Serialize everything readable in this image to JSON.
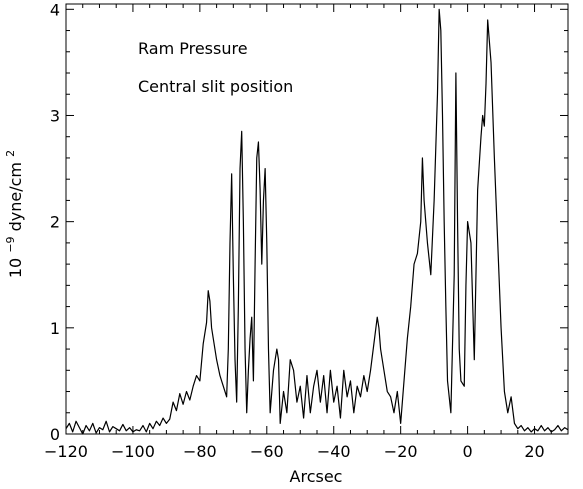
{
  "chart_data": {
    "type": "line",
    "title": "",
    "xlabel": "Arcsec",
    "ylabel": {
      "prefix": "10",
      "exponent": "−9",
      "unit": " dyne/cm",
      "unit_exponent": "2"
    },
    "xlim": [
      -120,
      30
    ],
    "ylim": [
      0,
      4.05
    ],
    "grid": false,
    "legend": "none",
    "annotations": [
      "Ram Pressure",
      "Central slit position"
    ],
    "x_ticks": [
      {
        "value": -120,
        "label": "−120"
      },
      {
        "value": -100,
        "label": "−100"
      },
      {
        "value": -80,
        "label": "−80"
      },
      {
        "value": -60,
        "label": "−60"
      },
      {
        "value": -40,
        "label": "−40"
      },
      {
        "value": -20,
        "label": "−20"
      },
      {
        "value": 0,
        "label": "0"
      },
      {
        "value": 20,
        "label": "20"
      }
    ],
    "y_ticks": [
      {
        "value": 0,
        "label": "0"
      },
      {
        "value": 1,
        "label": "1"
      },
      {
        "value": 2,
        "label": "2"
      },
      {
        "value": 3,
        "label": "3"
      },
      {
        "value": 4,
        "label": "4"
      }
    ],
    "series": [
      {
        "color": "#000000",
        "points": [
          [
            -120,
            0.05
          ],
          [
            -119,
            0.1
          ],
          [
            -118,
            0.02
          ],
          [
            -117,
            0.12
          ],
          [
            -116,
            0.06
          ],
          [
            -115,
            0.0
          ],
          [
            -114,
            0.08
          ],
          [
            -113,
            0.03
          ],
          [
            -112,
            0.1
          ],
          [
            -111,
            0.01
          ],
          [
            -110,
            0.06
          ],
          [
            -109,
            0.04
          ],
          [
            -108,
            0.12
          ],
          [
            -107,
            0.02
          ],
          [
            -106,
            0.07
          ],
          [
            -105,
            0.05
          ],
          [
            -104,
            0.03
          ],
          [
            -103,
            0.09
          ],
          [
            -102,
            0.03
          ],
          [
            -101,
            0.06
          ],
          [
            -100,
            0.02
          ],
          [
            -99,
            0.04
          ],
          [
            -98,
            0.03
          ],
          [
            -97,
            0.08
          ],
          [
            -96,
            0.02
          ],
          [
            -95,
            0.1
          ],
          [
            -94,
            0.05
          ],
          [
            -93,
            0.12
          ],
          [
            -92,
            0.08
          ],
          [
            -91,
            0.15
          ],
          [
            -90,
            0.1
          ],
          [
            -89,
            0.14
          ],
          [
            -88,
            0.3
          ],
          [
            -87,
            0.22
          ],
          [
            -86,
            0.38
          ],
          [
            -85,
            0.28
          ],
          [
            -84,
            0.4
          ],
          [
            -83,
            0.32
          ],
          [
            -82,
            0.45
          ],
          [
            -81,
            0.55
          ],
          [
            -80,
            0.5
          ],
          [
            -79,
            0.85
          ],
          [
            -78,
            1.05
          ],
          [
            -77.5,
            1.35
          ],
          [
            -77,
            1.25
          ],
          [
            -76.5,
            1.0
          ],
          [
            -76,
            0.9
          ],
          [
            -75,
            0.7
          ],
          [
            -74,
            0.55
          ],
          [
            -73,
            0.45
          ],
          [
            -72,
            0.35
          ],
          [
            -71.5,
            0.8
          ],
          [
            -71,
            1.8
          ],
          [
            -70.5,
            2.45
          ],
          [
            -70,
            1.5
          ],
          [
            -69.5,
            0.7
          ],
          [
            -69,
            0.3
          ],
          [
            -68.5,
            1.2
          ],
          [
            -68,
            2.5
          ],
          [
            -67.5,
            2.85
          ],
          [
            -67,
            2.0
          ],
          [
            -66.5,
            0.8
          ],
          [
            -66,
            0.2
          ],
          [
            -65.5,
            0.6
          ],
          [
            -65,
            0.9
          ],
          [
            -64.5,
            1.1
          ],
          [
            -64,
            0.5
          ],
          [
            -63.5,
            1.6
          ],
          [
            -63,
            2.6
          ],
          [
            -62.5,
            2.75
          ],
          [
            -62,
            2.3
          ],
          [
            -61.5,
            1.6
          ],
          [
            -61,
            2.2
          ],
          [
            -60.5,
            2.5
          ],
          [
            -60,
            1.8
          ],
          [
            -59.5,
            0.8
          ],
          [
            -59,
            0.2
          ],
          [
            -58,
            0.6
          ],
          [
            -57,
            0.8
          ],
          [
            -56.5,
            0.7
          ],
          [
            -56,
            0.1
          ],
          [
            -55,
            0.4
          ],
          [
            -54,
            0.2
          ],
          [
            -53,
            0.7
          ],
          [
            -52,
            0.6
          ],
          [
            -51,
            0.3
          ],
          [
            -50,
            0.45
          ],
          [
            -49,
            0.15
          ],
          [
            -48,
            0.55
          ],
          [
            -47,
            0.2
          ],
          [
            -46,
            0.45
          ],
          [
            -45,
            0.6
          ],
          [
            -44,
            0.3
          ],
          [
            -43,
            0.55
          ],
          [
            -42,
            0.2
          ],
          [
            -41,
            0.6
          ],
          [
            -40,
            0.3
          ],
          [
            -39,
            0.45
          ],
          [
            -38,
            0.15
          ],
          [
            -37,
            0.6
          ],
          [
            -36,
            0.35
          ],
          [
            -35,
            0.5
          ],
          [
            -34,
            0.2
          ],
          [
            -33,
            0.45
          ],
          [
            -32,
            0.35
          ],
          [
            -31,
            0.55
          ],
          [
            -30,
            0.4
          ],
          [
            -29,
            0.6
          ],
          [
            -28,
            0.85
          ],
          [
            -27,
            1.1
          ],
          [
            -26.5,
            1.0
          ],
          [
            -26,
            0.8
          ],
          [
            -25,
            0.6
          ],
          [
            -24,
            0.4
          ],
          [
            -23,
            0.35
          ],
          [
            -22,
            0.2
          ],
          [
            -21,
            0.4
          ],
          [
            -20,
            0.1
          ],
          [
            -19,
            0.5
          ],
          [
            -18,
            0.9
          ],
          [
            -17,
            1.2
          ],
          [
            -16,
            1.6
          ],
          [
            -15,
            1.7
          ],
          [
            -14,
            2.0
          ],
          [
            -13.5,
            2.6
          ],
          [
            -13,
            2.2
          ],
          [
            -12,
            1.8
          ],
          [
            -11,
            1.5
          ],
          [
            -10,
            2.2
          ],
          [
            -9,
            3.2
          ],
          [
            -8.5,
            4.0
          ],
          [
            -8,
            3.8
          ],
          [
            -7.5,
            3.0
          ],
          [
            -7,
            2.0
          ],
          [
            -6.5,
            1.2
          ],
          [
            -6,
            0.5
          ],
          [
            -5,
            0.2
          ],
          [
            -4,
            1.5
          ],
          [
            -3.5,
            3.4
          ],
          [
            -3,
            2.0
          ],
          [
            -2.5,
            0.8
          ],
          [
            -2,
            0.5
          ],
          [
            -1,
            0.45
          ],
          [
            -0.5,
            1.4
          ],
          [
            0,
            2.0
          ],
          [
            1,
            1.8
          ],
          [
            2,
            0.7
          ],
          [
            3,
            2.3
          ],
          [
            4,
            2.8
          ],
          [
            4.5,
            3.0
          ],
          [
            5,
            2.9
          ],
          [
            5.5,
            3.3
          ],
          [
            6,
            3.9
          ],
          [
            7,
            3.5
          ],
          [
            8,
            2.6
          ],
          [
            9,
            1.8
          ],
          [
            10,
            1.0
          ],
          [
            11,
            0.4
          ],
          [
            12,
            0.2
          ],
          [
            13,
            0.35
          ],
          [
            14,
            0.1
          ],
          [
            15,
            0.05
          ],
          [
            16,
            0.08
          ],
          [
            17,
            0.03
          ],
          [
            18,
            0.06
          ],
          [
            19,
            0.02
          ],
          [
            20,
            0.05
          ],
          [
            21,
            0.03
          ],
          [
            22,
            0.08
          ],
          [
            23,
            0.03
          ],
          [
            24,
            0.06
          ],
          [
            25,
            0.02
          ],
          [
            26,
            0.04
          ],
          [
            27,
            0.08
          ],
          [
            28,
            0.03
          ],
          [
            29,
            0.06
          ],
          [
            30,
            0.04
          ]
        ]
      }
    ]
  }
}
